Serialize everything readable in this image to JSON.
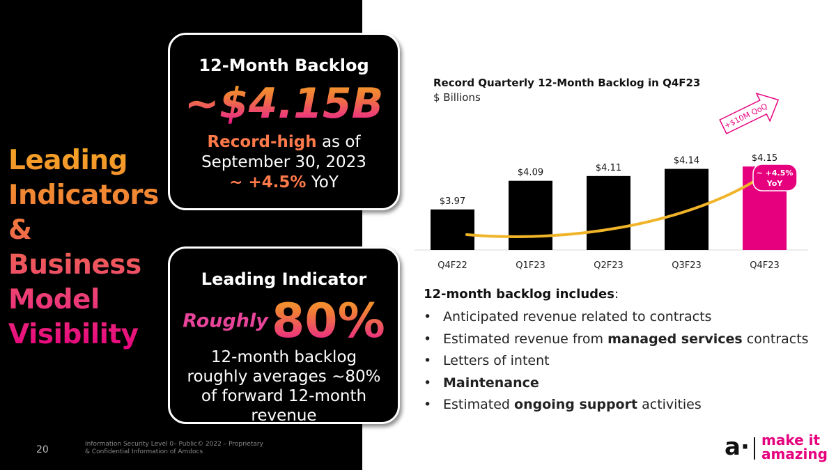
{
  "headline": [
    "Leading",
    "Indicators",
    "& Business",
    "Model",
    "Visibility"
  ],
  "card1": {
    "title": "12-Month Backlog",
    "value": "~$4.15B",
    "record_high": "Record-high",
    "line1_rest": " as of",
    "line2": "September 30, 2023",
    "yoy_value": "~ +4.5%",
    "yoy_label": " YoY"
  },
  "card2": {
    "title": "Leading Indicator",
    "roughly": "Roughly",
    "value": "80%",
    "description": "12-month backlog roughly averages ~80% of forward 12-month revenue"
  },
  "footer": {
    "page_number": "20",
    "classification": "Information Security Level 0– Public© 2022 – Proprietary & Confidential Information of Amdocs"
  },
  "chart_data": {
    "type": "bar",
    "title": "Record Quarterly 12-Month Backlog in Q4F23",
    "subtitle": "$ Billions",
    "categories": [
      "Q4F22",
      "Q1F23",
      "Q2F23",
      "Q3F23",
      "Q4F23"
    ],
    "values": [
      3.97,
      4.09,
      4.11,
      4.14,
      4.15
    ],
    "data_labels": [
      "$3.97",
      "$4.09",
      "$4.11",
      "$4.14",
      "$4.15"
    ],
    "colors": [
      "#000000",
      "#000000",
      "#000000",
      "#000000",
      "#e6007e"
    ],
    "ylim": [
      3.8,
      4.2
    ],
    "annotations": {
      "qoq_arrow": "+$10M QoQ",
      "yoy_badge": [
        "~ +4.5%",
        "YoY"
      ]
    }
  },
  "bullets": {
    "title_bold": "12-month backlog includes",
    "title_rest": ":",
    "items": [
      {
        "pre": "Anticipated revenue related to contracts",
        "bold": "",
        "post": ""
      },
      {
        "pre": "Estimated revenue from ",
        "bold": "managed services",
        "post": " contracts"
      },
      {
        "pre": "Letters of intent",
        "bold": "",
        "post": ""
      },
      {
        "pre": "",
        "bold": "Maintenance",
        "post": ""
      },
      {
        "pre": "Estimated ",
        "bold": "ongoing support",
        "post": " activities"
      }
    ]
  },
  "logo": {
    "mark": "a·",
    "line1": "make it",
    "line2": "amazing"
  },
  "colors": {
    "accent": "#e6007e",
    "orange": "#f5a623",
    "arrow": "#f0b429"
  }
}
